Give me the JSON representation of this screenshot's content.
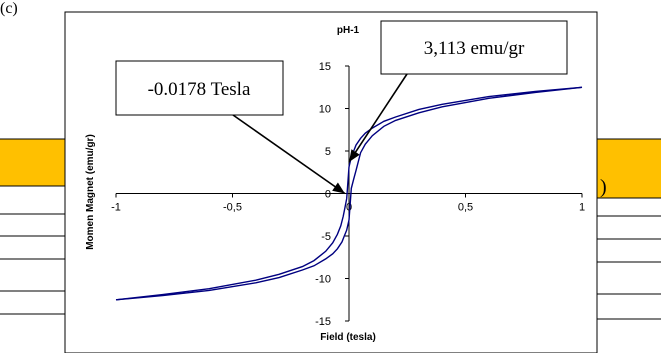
{
  "document": {
    "fragment_left": "(c)",
    "fragment_right": ")",
    "colors": {
      "table_header": "#ffc000",
      "table_line": "#000000"
    }
  },
  "chart_data": {
    "type": "line",
    "title": "pH-1",
    "xlabel": "Field (tesla)",
    "ylabel": "Momen Magnet (emu/gr)",
    "xlim": [
      -1,
      1
    ],
    "ylim": [
      -15,
      15
    ],
    "xticks": [
      -1,
      -0.5,
      0,
      0.5,
      1
    ],
    "xtick_labels": [
      "-1",
      "-0,5",
      "0",
      "0,5",
      "1"
    ],
    "yticks": [
      -15,
      -10,
      -5,
      0,
      5,
      10,
      15
    ],
    "ytick_labels": [
      "-15",
      "-10",
      "-5",
      "0",
      "5",
      "10",
      "15"
    ],
    "grid": false,
    "series": [
      {
        "color": "#000080",
        "x": [
          -1,
          -0.8,
          -0.6,
          -0.4,
          -0.3,
          -0.2,
          -0.15,
          -0.1,
          -0.07,
          -0.05,
          -0.035,
          -0.025,
          -0.0178,
          -0.01,
          0,
          0.01,
          0.02,
          0.03,
          0.05,
          0.07,
          0.1,
          0.15,
          0.2,
          0.3,
          0.4,
          0.6,
          0.8,
          1
        ],
        "y": [
          -12.5,
          -11.9,
          -11.2,
          -10.2,
          -9.5,
          -8.6,
          -7.9,
          -6.8,
          -5.8,
          -4.8,
          -3.8,
          -2.7,
          -1.7,
          -0.6,
          3.113,
          4.3,
          5.0,
          5.7,
          6.5,
          7.1,
          7.7,
          8.5,
          9.0,
          9.9,
          10.5,
          11.4,
          12.0,
          12.5
        ]
      },
      {
        "color": "#000080",
        "x": [
          -1,
          -0.8,
          -0.6,
          -0.4,
          -0.3,
          -0.2,
          -0.15,
          -0.1,
          -0.07,
          -0.05,
          -0.03,
          -0.02,
          -0.01,
          0,
          0.01,
          0.02,
          0.03,
          0.05,
          0.07,
          0.1,
          0.15,
          0.2,
          0.3,
          0.4,
          0.6,
          0.8,
          1
        ],
        "y": [
          -12.5,
          -12.0,
          -11.4,
          -10.5,
          -9.9,
          -9.0,
          -8.5,
          -7.7,
          -7.1,
          -6.5,
          -5.7,
          -5.0,
          -4.3,
          -3.113,
          0.6,
          1.7,
          2.7,
          4.8,
          5.8,
          6.8,
          7.9,
          8.6,
          9.5,
          10.2,
          11.2,
          11.9,
          12.5
        ]
      }
    ],
    "annotations": [
      {
        "text": "-0.0178 Tesla",
        "x": -0.0178,
        "y": 0
      },
      {
        "text": "3,113 emu/gr",
        "x": 0,
        "y": 3.113
      }
    ]
  }
}
